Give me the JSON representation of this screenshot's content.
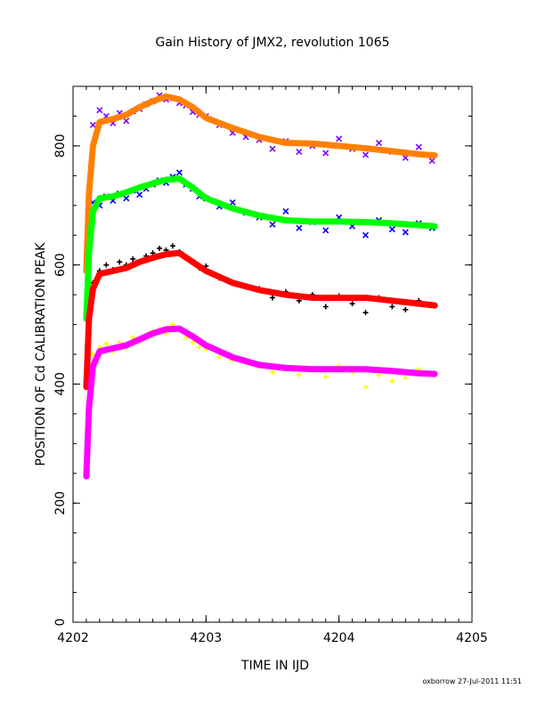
{
  "chart_data": {
    "type": "scatter",
    "title": "Gain History of JMX2, revolution 1065",
    "xlabel": "TIME IN IJD",
    "ylabel": "POSITION OF Cd CALIBRATION PEAK",
    "xlim": [
      4202,
      4205
    ],
    "ylim": [
      0,
      900
    ],
    "x_ticks": [
      "4202",
      "4203",
      "4204",
      "4205"
    ],
    "y_ticks": [
      "0",
      "200",
      "400",
      "600",
      "800"
    ],
    "footer": "oxborrow 27-Jul-2011 11:51",
    "grid": false,
    "legend": "none",
    "series": [
      {
        "color": "#ff8000",
        "marker": "line",
        "x": [
          4202.1,
          4202.12,
          4202.15,
          4202.2,
          4202.3,
          4202.4,
          4202.5,
          4202.6,
          4202.7,
          4202.8,
          4202.9,
          4203.0,
          4203.2,
          4203.4,
          4203.6,
          4203.8,
          4204.0,
          4204.2,
          4204.4,
          4204.6,
          4204.72
        ],
        "y": [
          590,
          720,
          800,
          840,
          845,
          852,
          865,
          875,
          883,
          878,
          865,
          847,
          830,
          815,
          805,
          804,
          800,
          796,
          791,
          786,
          784
        ]
      },
      {
        "color": "#00ff00",
        "marker": "line",
        "x": [
          4202.1,
          4202.12,
          4202.15,
          4202.2,
          4202.3,
          4202.4,
          4202.5,
          4202.6,
          4202.7,
          4202.8,
          4202.9,
          4203.0,
          4203.2,
          4203.4,
          4203.6,
          4203.8,
          4204.0,
          4204.2,
          4204.4,
          4204.6,
          4204.72
        ],
        "y": [
          510,
          620,
          690,
          712,
          715,
          722,
          730,
          737,
          743,
          745,
          730,
          712,
          695,
          683,
          675,
          673,
          673,
          672,
          670,
          667,
          665
        ]
      },
      {
        "color": "#ff0000",
        "marker": "line",
        "x": [
          4202.1,
          4202.12,
          4202.15,
          4202.2,
          4202.3,
          4202.4,
          4202.5,
          4202.6,
          4202.7,
          4202.8,
          4202.9,
          4203.0,
          4203.2,
          4203.4,
          4203.6,
          4203.8,
          4204.0,
          4204.2,
          4204.4,
          4204.6,
          4204.72
        ],
        "y": [
          395,
          510,
          560,
          585,
          590,
          595,
          605,
          612,
          618,
          620,
          605,
          590,
          570,
          558,
          550,
          545,
          545,
          545,
          540,
          535,
          532
        ]
      },
      {
        "color": "#ff00ff",
        "marker": "line",
        "x": [
          4202.1,
          4202.12,
          4202.15,
          4202.2,
          4202.3,
          4202.4,
          4202.5,
          4202.6,
          4202.7,
          4202.8,
          4202.9,
          4203.0,
          4203.2,
          4203.4,
          4203.6,
          4203.8,
          4204.0,
          4204.2,
          4204.4,
          4204.6,
          4204.72
        ],
        "y": [
          245,
          360,
          430,
          455,
          460,
          465,
          475,
          485,
          492,
          493,
          480,
          465,
          445,
          432,
          427,
          425,
          425,
          425,
          422,
          418,
          417
        ]
      },
      {
        "color": "#8000ff",
        "marker": "x",
        "x": [
          4202.15,
          4202.2,
          4202.25,
          4202.3,
          4202.35,
          4202.4,
          4202.45,
          4202.5,
          4202.55,
          4202.6,
          4202.65,
          4202.7,
          4202.75,
          4202.8,
          4202.85,
          4202.9,
          4202.95,
          4203.0,
          4203.1,
          4203.2,
          4203.3,
          4203.4,
          4203.5,
          4203.6,
          4203.7,
          4203.8,
          4203.9,
          4204.0,
          4204.1,
          4204.2,
          4204.3,
          4204.4,
          4204.5,
          4204.6,
          4204.7
        ],
        "y": [
          835,
          860,
          850,
          838,
          855,
          842,
          858,
          862,
          870,
          875,
          885,
          878,
          880,
          872,
          868,
          857,
          852,
          850,
          835,
          822,
          815,
          810,
          795,
          808,
          790,
          800,
          788,
          812,
          795,
          785,
          805,
          790,
          780,
          798,
          775
        ]
      },
      {
        "color": "#0000ff",
        "marker": "x",
        "x": [
          4202.15,
          4202.2,
          4202.25,
          4202.3,
          4202.35,
          4202.4,
          4202.45,
          4202.5,
          4202.55,
          4202.6,
          4202.65,
          4202.7,
          4202.75,
          4202.8,
          4202.85,
          4202.9,
          4202.95,
          4203.0,
          4203.1,
          4203.2,
          4203.3,
          4203.4,
          4203.5,
          4203.6,
          4203.7,
          4203.8,
          4203.9,
          4204.0,
          4204.1,
          4204.2,
          4204.3,
          4204.4,
          4204.5,
          4204.6,
          4204.7
        ],
        "y": [
          705,
          700,
          715,
          708,
          720,
          712,
          725,
          718,
          728,
          735,
          742,
          738,
          748,
          755,
          735,
          728,
          715,
          712,
          698,
          705,
          688,
          680,
          668,
          690,
          662,
          672,
          658,
          680,
          665,
          650,
          675,
          660,
          655,
          670,
          662
        ]
      },
      {
        "color": "#000000",
        "marker": "+",
        "x": [
          4202.15,
          4202.2,
          4202.25,
          4202.3,
          4202.35,
          4202.4,
          4202.45,
          4202.5,
          4202.55,
          4202.6,
          4202.65,
          4202.7,
          4202.75,
          4202.8,
          4202.85,
          4202.9,
          4202.95,
          4203.0,
          4203.1,
          4203.2,
          4203.3,
          4203.4,
          4203.5,
          4203.6,
          4203.7,
          4203.8,
          4203.9,
          4204.0,
          4204.1,
          4204.2,
          4204.3,
          4204.4,
          4204.5,
          4204.6,
          4204.7
        ],
        "y": [
          570,
          590,
          600,
          592,
          605,
          600,
          610,
          605,
          615,
          620,
          628,
          625,
          632,
          622,
          612,
          605,
          595,
          598,
          578,
          570,
          565,
          560,
          545,
          555,
          540,
          550,
          530,
          548,
          535,
          520,
          545,
          530,
          525,
          540,
          532
        ]
      },
      {
        "color": "#ffff00",
        "marker": "+",
        "x": [
          4202.15,
          4202.2,
          4202.25,
          4202.3,
          4202.35,
          4202.4,
          4202.45,
          4202.5,
          4202.55,
          4202.6,
          4202.65,
          4202.7,
          4202.75,
          4202.8,
          4202.85,
          4202.9,
          4202.95,
          4203.0,
          4203.1,
          4203.2,
          4203.3,
          4203.4,
          4203.5,
          4203.6,
          4203.7,
          4203.8,
          4203.9,
          4204.0,
          4204.1,
          4204.2,
          4204.3,
          4204.4,
          4204.5,
          4204.6,
          4204.7
        ],
        "y": [
          450,
          462,
          468,
          455,
          470,
          462,
          478,
          470,
          482,
          488,
          492,
          485,
          500,
          490,
          478,
          470,
          462,
          458,
          445,
          440,
          435,
          430,
          420,
          428,
          415,
          425,
          412,
          430,
          420,
          395,
          415,
          405,
          410,
          425,
          418
        ]
      }
    ]
  }
}
